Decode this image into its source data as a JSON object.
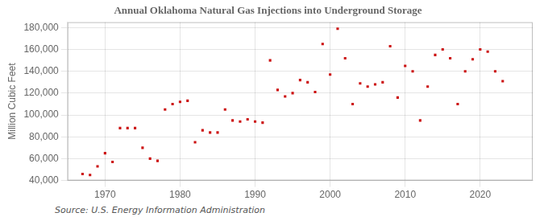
{
  "chart_data": {
    "type": "scatter",
    "title": "Annual Oklahoma Natural Gas Injections into Underground Storage",
    "y_label": "Million Cubic Feet",
    "annotations": [
      "Source: U.S. Energy Information Administration"
    ],
    "x": [
      1967,
      1968,
      1969,
      1970,
      1971,
      1972,
      1973,
      1974,
      1975,
      1976,
      1977,
      1978,
      1979,
      1980,
      1981,
      1982,
      1983,
      1984,
      1985,
      1986,
      1987,
      1988,
      1989,
      1990,
      1991,
      1992,
      1993,
      1994,
      1995,
      1996,
      1997,
      1998,
      1999,
      2000,
      2001,
      2002,
      2003,
      2004,
      2005,
      2006,
      2007,
      2008,
      2009,
      2010,
      2011,
      2012,
      2013,
      2014,
      2015,
      2016,
      2017,
      2018,
      2019,
      2020,
      2021,
      2022,
      2023
    ],
    "values": [
      46000,
      45000,
      53000,
      65000,
      57000,
      88000,
      88000,
      88000,
      70000,
      60000,
      58000,
      105000,
      110000,
      112000,
      113000,
      75000,
      86000,
      84000,
      84000,
      105000,
      95000,
      94000,
      96000,
      94000,
      93000,
      150000,
      123000,
      117000,
      120000,
      132000,
      130000,
      121000,
      165000,
      137000,
      179000,
      152000,
      110000,
      129000,
      126000,
      128000,
      130000,
      163000,
      116000,
      145000,
      140000,
      95000,
      126000,
      155000,
      160000,
      152000,
      110000,
      140000,
      151000,
      160000,
      158000,
      140000,
      131000
    ],
    "color": "#cc1111",
    "marker": "square",
    "xlim": [
      1965,
      2027
    ],
    "xticks": [
      1970,
      1980,
      1990,
      2000,
      2010,
      2020
    ],
    "ylim": [
      40000,
      185000
    ],
    "yticks": [
      {
        "value": 40000,
        "label": "40,000"
      },
      {
        "value": 60000,
        "label": "60,000"
      },
      {
        "value": 80000,
        "label": "80,000"
      },
      {
        "value": 100000,
        "label": "100,000"
      },
      {
        "value": 120000,
        "label": "120,000"
      },
      {
        "value": 140000,
        "label": "140,000"
      },
      {
        "value": 160000,
        "label": "160,000"
      },
      {
        "value": 180000,
        "label": "180,000"
      }
    ],
    "grid": true
  }
}
